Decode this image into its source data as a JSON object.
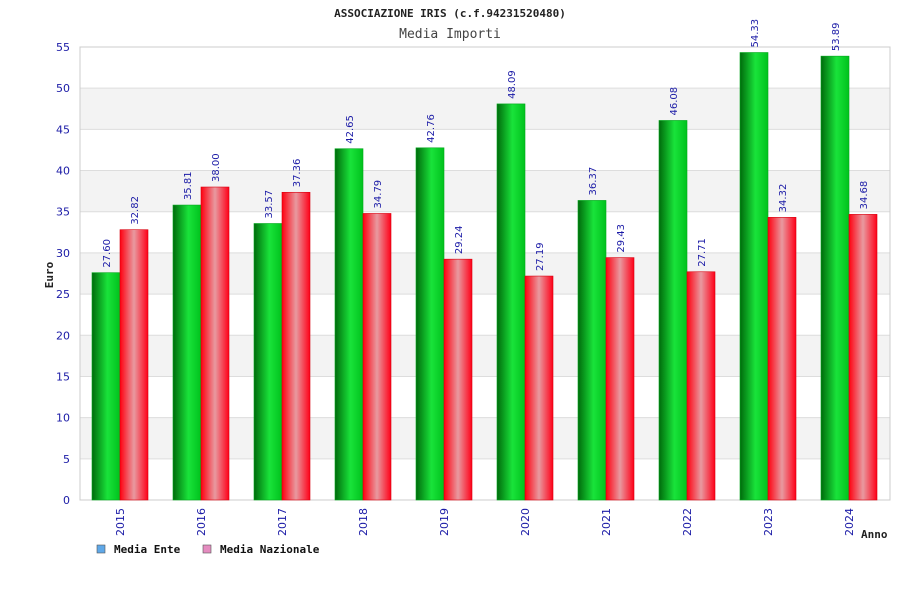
{
  "chart_data": {
    "type": "bar",
    "title": "ASSOCIAZIONE IRIS (c.f.94231520480)",
    "subtitle": "Media Importi",
    "xlabel": "Anno",
    "ylabel": "Euro",
    "ylim": [
      0,
      55
    ],
    "yticks": [
      0,
      5,
      10,
      15,
      20,
      25,
      30,
      35,
      40,
      45,
      50,
      55
    ],
    "grid": true,
    "legend_position": "bottom-left",
    "categories": [
      "2015",
      "2016",
      "2017",
      "2018",
      "2019",
      "2020",
      "2021",
      "2022",
      "2023",
      "2024"
    ],
    "series": [
      {
        "name": "Media Ente",
        "color": "#00cc22",
        "legend_color": "#5fa8e8",
        "values": [
          27.6,
          35.81,
          33.57,
          42.65,
          42.76,
          48.09,
          36.37,
          46.08,
          54.33,
          53.89
        ],
        "labels": [
          "27.60",
          "35.81",
          "33.57",
          "42.65",
          "42.76",
          "48.09",
          "36.37",
          "46.08",
          "54.33",
          "53.89"
        ]
      },
      {
        "name": "Media Nazionale",
        "color": "#ee0011",
        "legend_color": "#e58cc0",
        "values": [
          32.82,
          38.0,
          37.36,
          34.79,
          29.24,
          27.19,
          29.43,
          27.71,
          34.32,
          34.68
        ],
        "labels": [
          "32.82",
          "38.00",
          "37.36",
          "34.79",
          "29.24",
          "27.19",
          "29.43",
          "27.71",
          "34.32",
          "34.68"
        ]
      }
    ]
  }
}
